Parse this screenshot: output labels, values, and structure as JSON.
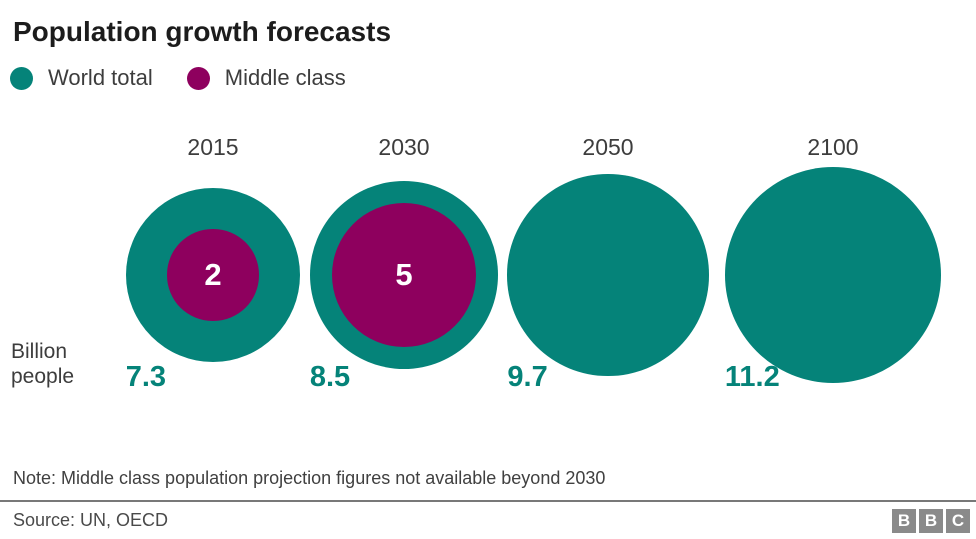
{
  "title": "Population growth forecasts",
  "legend": {
    "items": [
      {
        "label": "World total",
        "color": "#058379"
      },
      {
        "label": "Middle class",
        "color": "#8e005e"
      }
    ]
  },
  "unit_label": {
    "line1": "Billion",
    "line2": "people"
  },
  "note": "Note: Middle class population projection figures not available beyond 2030",
  "source": "Source: UN, OECD",
  "logo": {
    "letters": [
      "B",
      "B",
      "C"
    ]
  },
  "colors": {
    "world_total": "#058379",
    "middle_class": "#8e005e",
    "value_text": "#058379",
    "text_dark": "#1c1c1c",
    "text_gray": "#3d3d3d"
  },
  "chart_data": {
    "type": "proportional_area_circles",
    "title": "Population growth forecasts",
    "unit": "billion people",
    "categories": [
      "2015",
      "2030",
      "2050",
      "2100"
    ],
    "series": [
      {
        "name": "World total",
        "color": "#058379",
        "values": [
          7.3,
          8.5,
          9.7,
          11.2
        ]
      },
      {
        "name": "Middle class",
        "color": "#8e005e",
        "values": [
          2,
          5,
          null,
          null
        ]
      }
    ],
    "items": [
      {
        "year": "2015",
        "world": "7.3",
        "middle": "2"
      },
      {
        "year": "2030",
        "world": "8.5",
        "middle": "5"
      },
      {
        "year": "2050",
        "world": "9.7",
        "middle": null
      },
      {
        "year": "2100",
        "world": "11.2",
        "middle": null
      }
    ],
    "legend_position": "top-left",
    "area_proportional": true,
    "note": "Middle class population projection figures not available beyond 2030"
  }
}
